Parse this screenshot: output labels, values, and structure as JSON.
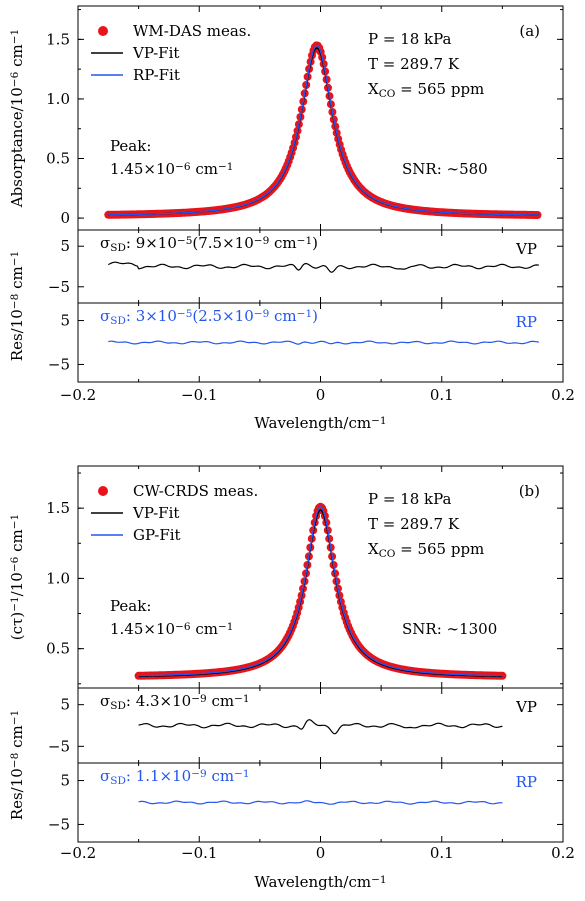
{
  "colors": {
    "meas": "#e8141b",
    "vp": "#000000",
    "fit2": "#2255ee",
    "frame": "#000000"
  },
  "chart_data": [
    {
      "type": "line",
      "panel": "(a)",
      "xlabel": "Wavelength/cm⁻¹",
      "xlim": [
        -0.2,
        0.2
      ],
      "xticks": [
        "−0.2",
        "−0.1",
        "0",
        "0.1",
        "0.2"
      ],
      "main": {
        "ylabel": "Absorptance/10⁻⁶ cm⁻¹",
        "ylim": [
          -0.1,
          1.78
        ],
        "yticks": [
          "0",
          "0.5",
          "1.0",
          "1.5"
        ],
        "line_shape": {
          "center": -0.003,
          "peak": 1.45,
          "baseline": 0.015,
          "hwhm": 0.016,
          "x_range": [
            -0.175,
            0.18
          ]
        },
        "legend": [
          "WM-DAS meas.",
          "VP-Fit",
          "RP-Fit"
        ],
        "conditions": [
          "P = 18 kPa",
          "T = 289.7 K",
          "X_CO = 565 ppm"
        ],
        "peak_label": "Peak:",
        "peak_value": "1.45×10⁻⁶ cm⁻¹",
        "snr": "SNR: ∼580"
      },
      "residuals": {
        "ylabel": "Res/10⁻⁸ cm⁻¹",
        "ylim": [
          -9,
          9
        ],
        "yticks": [
          "−5",
          "5"
        ],
        "upper": {
          "label": "VP",
          "sigma": "σSD: 9×10⁻⁵(7.5×10⁻⁹ cm⁻¹)"
        },
        "lower": {
          "label": "RP",
          "sigma": "σSD: 3×10⁻⁵(2.5×10⁻⁹ cm⁻¹)"
        }
      }
    },
    {
      "type": "line",
      "panel": "(b)",
      "xlabel": "Wavelength/cm⁻¹",
      "xlim": [
        -0.2,
        0.2
      ],
      "xticks": [
        "−0.2",
        "−0.1",
        "0",
        "0.1",
        "0.2"
      ],
      "main": {
        "ylabel": "(cτ)⁻¹/10⁻⁶ cm⁻¹",
        "ylim": [
          0.22,
          1.8
        ],
        "yticks": [
          "0.5",
          "1.0",
          "1.5"
        ],
        "line_shape": {
          "center": 0.0,
          "peak": 1.51,
          "baseline": 0.295,
          "hwhm": 0.015,
          "x_range": [
            -0.15,
            0.15
          ]
        },
        "legend": [
          "CW-CRDS meas.",
          "VP-Fit",
          "GP-Fit"
        ],
        "conditions": [
          "P = 18 kPa",
          "T = 289.7 K",
          "X_CO = 565 ppm"
        ],
        "peak_label": "Peak:",
        "peak_value": "1.45×10⁻⁶ cm⁻¹",
        "snr": "SNR: ∼1300"
      },
      "residuals": {
        "ylabel": "Res/10⁻⁸ cm⁻¹",
        "ylim": [
          -9,
          9
        ],
        "yticks": [
          "−5",
          "5"
        ],
        "upper": {
          "label": "VP",
          "sigma": "σSD: 4.3×10⁻⁹ cm⁻¹"
        },
        "lower": {
          "label": "RP",
          "sigma": "σSD: 1.1×10⁻⁹ cm⁻¹"
        }
      }
    }
  ]
}
